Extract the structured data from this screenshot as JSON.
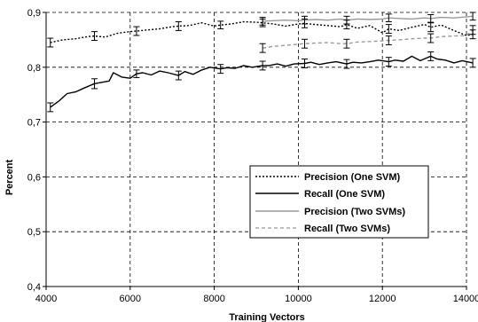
{
  "chart_data": {
    "type": "line",
    "xlabel": "Training Vectors",
    "ylabel": "Percent",
    "xlim": [
      4000,
      14000
    ],
    "ylim": [
      0.4,
      0.9
    ],
    "x_ticks": [
      "4000",
      "6000",
      "8000",
      "10000",
      "12000",
      "14000"
    ],
    "y_ticks": [
      "0,4",
      "0,5",
      "0,6",
      "0,7",
      "0,8",
      "0,9"
    ],
    "grid": true,
    "legend_position": "lower-right",
    "series": [
      {
        "name": "Precision (One SVM)",
        "color": "#000000",
        "dash": "dotted",
        "x": [
          4100,
          4400,
          4700,
          5000,
          5150,
          5400,
          5700,
          6000,
          6150,
          6400,
          6700,
          7000,
          7150,
          7400,
          7700,
          8000,
          8150,
          8400,
          8700,
          9000,
          9150,
          9400,
          9700,
          10000,
          10150,
          10400,
          10700,
          11000,
          11150,
          11400,
          11700,
          12000,
          12150,
          12400,
          12700,
          13000,
          13150,
          13400,
          13700,
          14000,
          14150
        ],
        "values": [
          0.845,
          0.85,
          0.852,
          0.856,
          0.857,
          0.855,
          0.862,
          0.865,
          0.866,
          0.868,
          0.87,
          0.874,
          0.875,
          0.876,
          0.881,
          0.875,
          0.877,
          0.879,
          0.883,
          0.882,
          0.881,
          0.879,
          0.875,
          0.879,
          0.88,
          0.878,
          0.876,
          0.874,
          0.878,
          0.871,
          0.876,
          0.863,
          0.87,
          0.867,
          0.873,
          0.878,
          0.873,
          0.877,
          0.867,
          0.858,
          0.86
        ],
        "errors": [
          [
            4100,
            0.845,
            0.008
          ],
          [
            5150,
            0.857,
            0.008
          ],
          [
            6150,
            0.866,
            0.008
          ],
          [
            7150,
            0.875,
            0.008
          ],
          [
            8150,
            0.877,
            0.007
          ],
          [
            9150,
            0.881,
            0.007
          ],
          [
            10150,
            0.88,
            0.008
          ],
          [
            11150,
            0.878,
            0.008
          ],
          [
            12150,
            0.87,
            0.008
          ],
          [
            13150,
            0.873,
            0.008
          ],
          [
            14150,
            0.86,
            0.008
          ]
        ]
      },
      {
        "name": "Recall (One SVM)",
        "color": "#000000",
        "dash": "solid",
        "x": [
          4100,
          4300,
          4500,
          4700,
          4900,
          5150,
          5300,
          5500,
          5600,
          5800,
          6000,
          6150,
          6300,
          6500,
          6700,
          6900,
          7150,
          7300,
          7500,
          7700,
          7900,
          8150,
          8300,
          8500,
          8700,
          8900,
          9150,
          9300,
          9500,
          9700,
          9900,
          10150,
          10300,
          10500,
          10700,
          10900,
          11150,
          11300,
          11500,
          11700,
          11900,
          12150,
          12300,
          12500,
          12700,
          12900,
          13150,
          13300,
          13500,
          13700,
          13900,
          14150
        ],
        "values": [
          0.727,
          0.738,
          0.752,
          0.755,
          0.762,
          0.77,
          0.772,
          0.775,
          0.79,
          0.782,
          0.78,
          0.788,
          0.79,
          0.786,
          0.793,
          0.79,
          0.785,
          0.792,
          0.787,
          0.795,
          0.8,
          0.797,
          0.799,
          0.798,
          0.803,
          0.8,
          0.803,
          0.803,
          0.806,
          0.802,
          0.806,
          0.807,
          0.809,
          0.805,
          0.808,
          0.81,
          0.806,
          0.809,
          0.808,
          0.81,
          0.813,
          0.81,
          0.813,
          0.811,
          0.82,
          0.812,
          0.82,
          0.815,
          0.813,
          0.808,
          0.812,
          0.808
        ],
        "errors": [
          [
            4100,
            0.727,
            0.008
          ],
          [
            5150,
            0.77,
            0.009
          ],
          [
            6150,
            0.788,
            0.007
          ],
          [
            7150,
            0.785,
            0.008
          ],
          [
            8150,
            0.797,
            0.008
          ],
          [
            9150,
            0.803,
            0.008
          ],
          [
            10150,
            0.807,
            0.008
          ],
          [
            11150,
            0.806,
            0.008
          ],
          [
            12150,
            0.81,
            0.008
          ],
          [
            13150,
            0.82,
            0.008
          ],
          [
            14150,
            0.808,
            0.008
          ]
        ]
      },
      {
        "name": "Precision (Two SVMs)",
        "color": "#999999",
        "dash": "solid",
        "x": [
          9150,
          9400,
          9700,
          10000,
          10150,
          10400,
          10700,
          11000,
          11150,
          11400,
          11700,
          12000,
          12150,
          12400,
          12700,
          13000,
          13150,
          13400,
          13700,
          14000,
          14150
        ],
        "values": [
          0.884,
          0.885,
          0.886,
          0.885,
          0.886,
          0.887,
          0.886,
          0.888,
          0.886,
          0.888,
          0.887,
          0.888,
          0.89,
          0.889,
          0.888,
          0.89,
          0.889,
          0.891,
          0.89,
          0.892,
          0.893
        ],
        "errors": [
          [
            9150,
            0.884,
            0.007
          ],
          [
            10150,
            0.886,
            0.007
          ],
          [
            11150,
            0.886,
            0.007
          ],
          [
            12150,
            0.89,
            0.007
          ],
          [
            13150,
            0.889,
            0.007
          ],
          [
            14150,
            0.893,
            0.007
          ]
        ]
      },
      {
        "name": "Recall (Two SVMs)",
        "color": "#999999",
        "dash": "dashed",
        "x": [
          9150,
          9400,
          9700,
          10000,
          10150,
          10400,
          10700,
          11000,
          11150,
          11400,
          11700,
          12000,
          12150,
          12400,
          12700,
          13000,
          13150,
          13400,
          13700,
          14000,
          14150
        ],
        "values": [
          0.835,
          0.838,
          0.84,
          0.842,
          0.843,
          0.844,
          0.845,
          0.843,
          0.843,
          0.846,
          0.847,
          0.848,
          0.849,
          0.85,
          0.852,
          0.853,
          0.853,
          0.856,
          0.857,
          0.858,
          0.868
        ],
        "errors": [
          [
            9150,
            0.835,
            0.008
          ],
          [
            10150,
            0.843,
            0.008
          ],
          [
            11150,
            0.843,
            0.008
          ],
          [
            12150,
            0.849,
            0.008
          ],
          [
            13150,
            0.853,
            0.008
          ],
          [
            14150,
            0.868,
            0.008
          ]
        ]
      }
    ]
  }
}
